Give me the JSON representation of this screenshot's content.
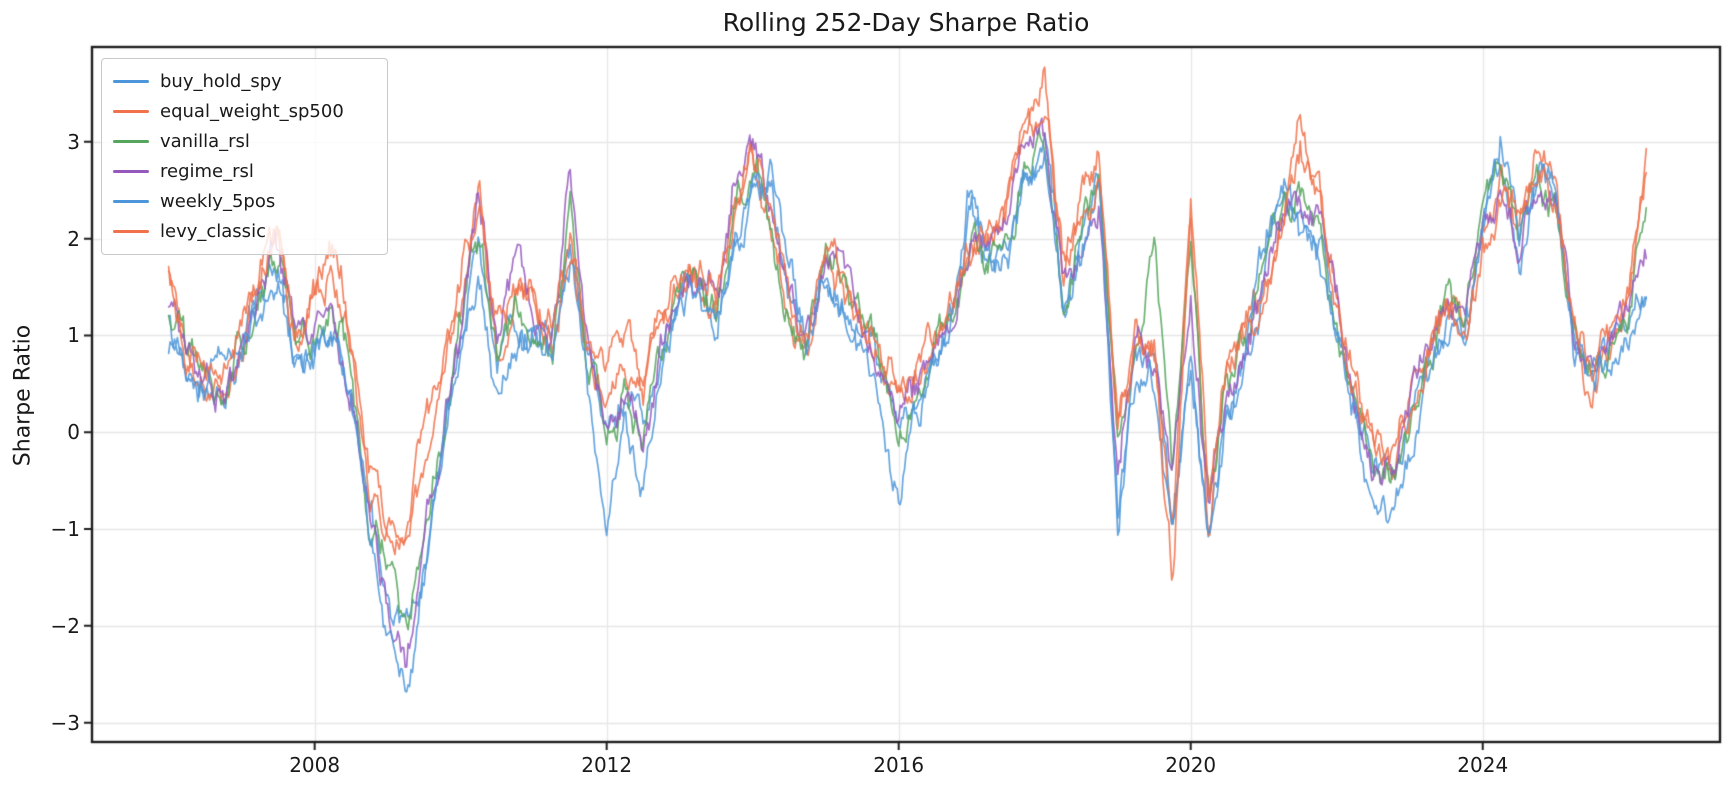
{
  "chart_data": {
    "type": "line",
    "title": "Rolling 252-Day Sharpe Ratio",
    "ylabel": "Sharpe Ratio",
    "xlabel": "",
    "grid": true,
    "legend_position": "upper left",
    "colors": {
      "blue": "#4D96D9",
      "orange": "#F0714A",
      "green": "#55A55C",
      "purple": "#9559BE",
      "grid_line": "#e7e7e7",
      "spine": "#1f1f1f",
      "text": "#1a1a1a"
    },
    "ylim": [
      -3.2,
      3.98
    ],
    "xlim": [
      2004.95,
      2027.25
    ],
    "yticks": [
      {
        "value": 3,
        "label": "3"
      },
      {
        "value": 2,
        "label": "2"
      },
      {
        "value": 1,
        "label": "1"
      },
      {
        "value": 0,
        "label": "0"
      },
      {
        "value": -1,
        "label": "−1"
      },
      {
        "value": -2,
        "label": "−2"
      },
      {
        "value": -3,
        "label": "−3"
      }
    ],
    "xticks": [
      {
        "value": 2008,
        "label": "2008"
      },
      {
        "value": 2012,
        "label": "2012"
      },
      {
        "value": 2016,
        "label": "2016"
      },
      {
        "value": 2020,
        "label": "2020"
      },
      {
        "value": 2024,
        "label": "2024"
      }
    ],
    "x_start": 2006.0,
    "x_step": 0.25,
    "line_alpha": 0.85,
    "line_width": 1.7,
    "series": [
      {
        "name": "buy_hold_spy",
        "color": "#4D96D9",
        "values": [
          1.1,
          0.6,
          0.45,
          0.5,
          0.9,
          1.3,
          1.7,
          0.7,
          0.9,
          1.1,
          0.5,
          -0.9,
          -1.6,
          -2.1,
          -1.4,
          -0.3,
          0.8,
          2.0,
          0.7,
          1.2,
          1.1,
          0.8,
          1.8,
          0.6,
          0.0,
          0.3,
          0.0,
          0.7,
          1.3,
          1.4,
          1.2,
          2.1,
          2.5,
          2.4,
          1.3,
          1.0,
          1.5,
          1.4,
          1.0,
          0.6,
          0.0,
          0.3,
          0.8,
          1.2,
          2.4,
          1.7,
          2.0,
          2.8,
          3.0,
          1.4,
          2.0,
          2.5,
          -0.7,
          0.7,
          0.6,
          -0.8,
          0.7,
          -1.0,
          0.4,
          0.9,
          1.6,
          2.5,
          2.2,
          2.0,
          1.1,
          0.2,
          -0.4,
          -0.6,
          0.0,
          0.6,
          1.1,
          1.1,
          2.1,
          2.8,
          1.8,
          2.6,
          2.4,
          0.8,
          0.6,
          0.8,
          1.1,
          1.6
        ]
      },
      {
        "name": "equal_weight_sp500",
        "color": "#F0714A",
        "values": [
          1.6,
          0.9,
          0.6,
          0.5,
          1.1,
          1.7,
          2.1,
          1.0,
          1.4,
          1.7,
          0.9,
          -0.5,
          -1.0,
          -1.1,
          -0.4,
          0.4,
          1.3,
          2.7,
          0.9,
          1.4,
          1.3,
          1.0,
          2.1,
          0.9,
          0.5,
          0.9,
          0.4,
          1.1,
          1.7,
          1.6,
          1.4,
          2.4,
          2.9,
          2.2,
          1.2,
          0.9,
          1.8,
          1.6,
          1.2,
          0.8,
          0.4,
          0.6,
          1.0,
          1.4,
          2.1,
          2.0,
          2.3,
          3.0,
          3.5,
          1.7,
          2.3,
          2.7,
          -0.2,
          0.9,
          0.8,
          -1.0,
          2.2,
          -1.1,
          0.6,
          1.1,
          1.5,
          2.2,
          3.0,
          2.5,
          1.3,
          0.4,
          -0.2,
          -0.4,
          0.2,
          0.8,
          1.3,
          1.0,
          2.0,
          2.5,
          2.1,
          3.0,
          2.6,
          1.0,
          0.4,
          1.0,
          1.4,
          2.85
        ]
      },
      {
        "name": "vanilla_rsl",
        "color": "#55A55C",
        "values": [
          1.2,
          0.7,
          0.5,
          0.4,
          1.0,
          1.4,
          1.8,
          0.8,
          1.0,
          1.2,
          0.6,
          -0.8,
          -1.3,
          -1.8,
          -1.0,
          0.0,
          1.0,
          2.1,
          0.8,
          1.3,
          1.2,
          0.9,
          2.5,
          0.7,
          0.2,
          0.5,
          0.1,
          0.8,
          1.5,
          1.5,
          1.3,
          2.3,
          2.7,
          2.2,
          1.2,
          1.0,
          1.7,
          1.5,
          1.1,
          0.7,
          0.2,
          0.5,
          0.9,
          1.3,
          2.2,
          1.8,
          2.1,
          2.8,
          3.0,
          1.5,
          2.1,
          2.4,
          -0.3,
          0.8,
          2.0,
          -0.5,
          1.8,
          -0.8,
          0.5,
          1.0,
          1.7,
          2.3,
          2.4,
          2.1,
          1.2,
          0.3,
          -0.3,
          -0.5,
          0.1,
          0.7,
          1.2,
          1.1,
          2.2,
          2.8,
          1.9,
          2.7,
          2.2,
          0.9,
          0.5,
          0.9,
          1.3,
          2.4
        ]
      },
      {
        "name": "regime_rsl",
        "color": "#9559BE",
        "values": [
          1.3,
          0.8,
          0.5,
          0.4,
          1.0,
          1.5,
          1.8,
          0.8,
          1.1,
          1.3,
          0.6,
          -0.9,
          -1.7,
          -2.3,
          -1.2,
          -0.1,
          0.9,
          2.2,
          0.9,
          1.8,
          1.3,
          1.0,
          2.75,
          0.8,
          0.1,
          0.4,
          0.1,
          0.9,
          1.5,
          1.6,
          1.4,
          2.5,
          2.8,
          2.3,
          1.3,
          1.1,
          1.7,
          1.6,
          1.1,
          0.7,
          0.3,
          0.5,
          0.9,
          1.3,
          2.2,
          1.9,
          2.2,
          2.9,
          3.0,
          1.6,
          2.0,
          2.4,
          -0.2,
          0.9,
          0.7,
          -0.4,
          1.2,
          -0.9,
          0.3,
          0.8,
          1.6,
          2.2,
          2.3,
          2.2,
          1.3,
          0.4,
          -0.4,
          -0.3,
          0.3,
          0.8,
          1.4,
          1.2,
          2.1,
          2.6,
          1.9,
          2.5,
          2.3,
          1.0,
          0.5,
          0.9,
          1.2,
          2.1
        ]
      },
      {
        "name": "weekly_5pos",
        "color": "#4D96D9",
        "values": [
          0.9,
          0.5,
          0.35,
          0.6,
          0.8,
          1.2,
          1.6,
          0.6,
          0.8,
          1.0,
          0.4,
          -1.1,
          -1.9,
          -2.7,
          -1.6,
          -0.5,
          0.7,
          1.9,
          0.55,
          1.1,
          1.0,
          0.7,
          1.7,
          0.4,
          -0.9,
          0.1,
          -0.7,
          0.5,
          1.2,
          1.3,
          1.1,
          2.0,
          2.4,
          2.5,
          1.4,
          0.9,
          1.4,
          1.3,
          0.9,
          0.5,
          -0.7,
          0.2,
          0.7,
          1.1,
          2.6,
          1.6,
          1.9,
          2.7,
          2.9,
          1.3,
          1.9,
          2.7,
          -0.9,
          0.6,
          0.5,
          -1.1,
          0.5,
          -1.2,
          0.3,
          0.8,
          1.8,
          2.6,
          2.1,
          1.9,
          1.0,
          0.1,
          -0.6,
          -0.8,
          -0.1,
          0.5,
          1.0,
          1.0,
          2.3,
          3.0,
          1.8,
          2.7,
          2.5,
          0.7,
          0.3,
          0.7,
          1.0,
          1.4
        ]
      },
      {
        "name": "levy_classic",
        "color": "#F0714A",
        "values": [
          1.7,
          1.0,
          0.7,
          0.6,
          1.2,
          1.8,
          2.3,
          1.1,
          1.6,
          2.0,
          1.0,
          -0.4,
          -1.1,
          -0.9,
          0.0,
          0.6,
          1.5,
          2.5,
          1.0,
          1.5,
          1.4,
          1.1,
          2.0,
          1.0,
          0.6,
          1.0,
          0.5,
          1.2,
          1.8,
          1.7,
          1.5,
          2.3,
          2.8,
          2.1,
          1.3,
          1.0,
          1.9,
          1.7,
          1.3,
          0.9,
          0.5,
          0.7,
          1.1,
          1.5,
          2.0,
          2.1,
          2.4,
          3.1,
          3.3,
          1.8,
          2.2,
          2.6,
          0.0,
          1.0,
          0.9,
          -1.6,
          2.4,
          -1.0,
          0.7,
          1.2,
          1.4,
          2.1,
          3.1,
          2.6,
          1.4,
          0.5,
          -0.1,
          -0.3,
          0.3,
          0.9,
          1.4,
          1.1,
          1.9,
          2.4,
          2.2,
          2.9,
          2.5,
          1.1,
          0.5,
          1.1,
          1.5,
          2.7
        ]
      }
    ]
  }
}
